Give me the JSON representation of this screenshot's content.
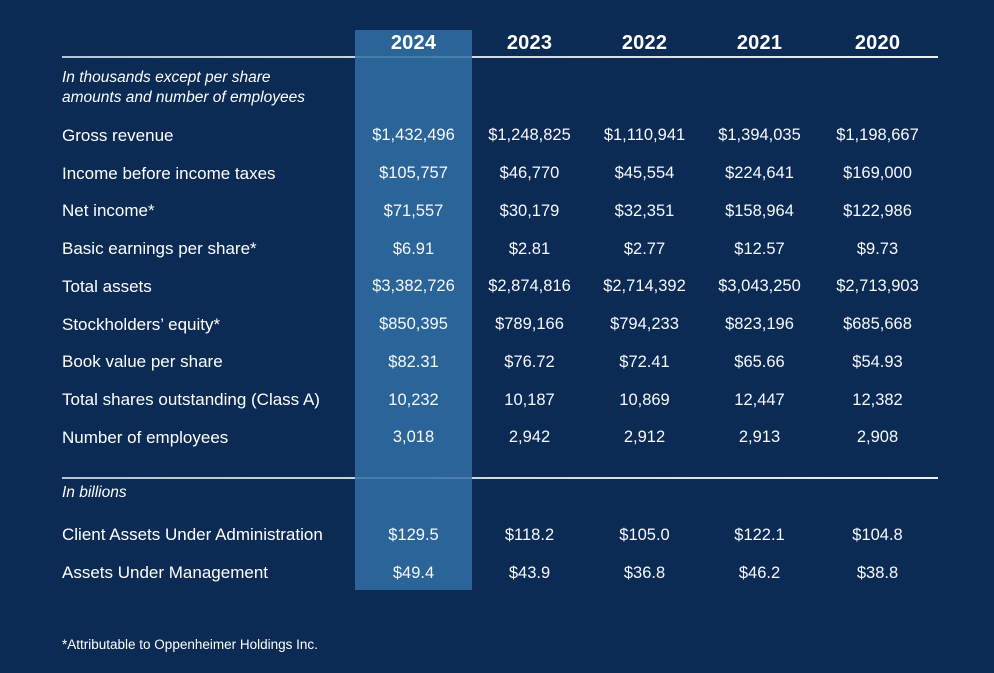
{
  "page": {
    "background_color": "#0b2a54",
    "highlight_color": "#2b6598",
    "line_color": "#d3dde6",
    "text_color": "#ffffff"
  },
  "table": {
    "years": [
      "2024",
      "2023",
      "2022",
      "2021",
      "2020"
    ],
    "highlighted_year": "2024",
    "section1_note_line1": "In thousands except per share",
    "section1_note_line2": "amounts and number of employees",
    "section1_rows": [
      {
        "label": "Gross revenue",
        "values": [
          "$1,432,496",
          "$1,248,825",
          "$1,110,941",
          "$1,394,035",
          "$1,198,667"
        ]
      },
      {
        "label": "Income before income taxes",
        "values": [
          "$105,757",
          "$46,770",
          "$45,554",
          "$224,641",
          "$169,000"
        ]
      },
      {
        "label": "Net income*",
        "values": [
          "$71,557",
          "$30,179",
          "$32,351",
          "$158,964",
          "$122,986"
        ]
      },
      {
        "label": "Basic earnings per share*",
        "values": [
          "$6.91",
          "$2.81",
          "$2.77",
          "$12.57",
          "$9.73"
        ]
      },
      {
        "label": "Total assets",
        "values": [
          "$3,382,726",
          "$2,874,816",
          "$2,714,392",
          "$3,043,250",
          "$2,713,903"
        ]
      },
      {
        "label": "Stockholders’ equity*",
        "values": [
          "$850,395",
          "$789,166",
          "$794,233",
          "$823,196",
          "$685,668"
        ]
      },
      {
        "label": "Book value per share",
        "values": [
          "$82.31",
          "$76.72",
          "$72.41",
          "$65.66",
          "$54.93"
        ]
      },
      {
        "label": "Total shares outstanding (Class A)",
        "values": [
          "10,232",
          "10,187",
          "10,869",
          "12,447",
          "12,382"
        ]
      },
      {
        "label": "Number of employees",
        "values": [
          "3,018",
          "2,942",
          "2,912",
          "2,913",
          "2,908"
        ]
      }
    ],
    "section2_note": "In billions",
    "section2_rows": [
      {
        "label": "Client Assets Under Administration",
        "values": [
          "$129.5",
          "$118.2",
          "$105.0",
          "$122.1",
          "$104.8"
        ]
      },
      {
        "label": "Assets Under Management",
        "values": [
          "$49.4",
          "$43.9",
          "$36.8",
          "$46.2",
          "$38.8"
        ]
      }
    ],
    "footnote": "*Attributable to Oppenheimer Holdings Inc."
  }
}
